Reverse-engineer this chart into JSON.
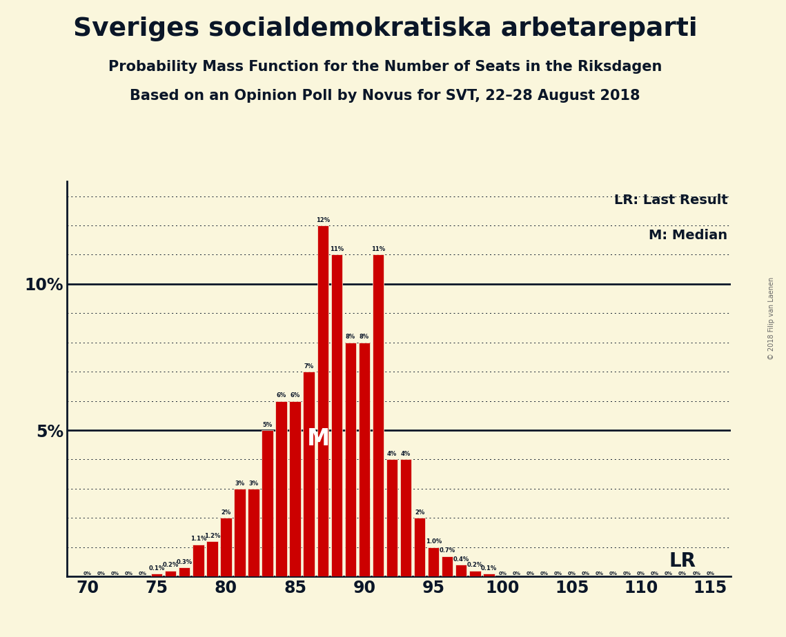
{
  "title": "Sveriges socialdemokratiska arbetareparti",
  "subtitle1": "Probability Mass Function for the Number of Seats in the Riksdagen",
  "subtitle2": "Based on an Opinion Poll by Novus for SVT, 22–28 August 2018",
  "copyright": "© 2018 Filip van Laenen",
  "lr_label": "LR: Last Result",
  "m_label": "M: Median",
  "lr_text": "LR",
  "m_text": "M",
  "lr_seat": 113,
  "median_seat": 87,
  "background_color": "#FAF6DC",
  "bar_color": "#CC0000",
  "bar_edge_color": "#FAF6DC",
  "text_color": "#0A1628",
  "ylim_max": 0.135,
  "seats": [
    70,
    71,
    72,
    73,
    74,
    75,
    76,
    77,
    78,
    79,
    80,
    81,
    82,
    83,
    84,
    85,
    86,
    87,
    88,
    89,
    90,
    91,
    92,
    93,
    94,
    95,
    96,
    97,
    98,
    99,
    100,
    101,
    102,
    103,
    104,
    105,
    106,
    107,
    108,
    109,
    110,
    111,
    112,
    113,
    114,
    115
  ],
  "probs": [
    0.0,
    0.0,
    0.0,
    0.0,
    0.0,
    0.001,
    0.002,
    0.003,
    0.011,
    0.012,
    0.02,
    0.03,
    0.03,
    0.05,
    0.06,
    0.06,
    0.07,
    0.12,
    0.11,
    0.08,
    0.08,
    0.11,
    0.04,
    0.04,
    0.02,
    0.01,
    0.007,
    0.004,
    0.002,
    0.001,
    0.0,
    0.0,
    0.0,
    0.0,
    0.0,
    0.0,
    0.0,
    0.0,
    0.0,
    0.0,
    0.0,
    0.0,
    0.0,
    0.0,
    0.0,
    0.0
  ],
  "bar_labels": [
    "0%",
    "0%",
    "0%",
    "0%",
    "0%",
    "0.1%",
    "0.2%",
    "0.3%",
    "1.1%",
    "1.2%",
    "2%",
    "3%",
    "3%",
    "5%",
    "6%",
    "6%",
    "7%",
    "12%",
    "11%",
    "8%",
    "8%",
    "11%",
    "4%",
    "4%",
    "2%",
    "1.0%",
    "0.7%",
    "0.4%",
    "0.2%",
    "0.1%",
    "0%",
    "0%",
    "0%",
    "0%",
    "0%",
    "0%",
    "0%",
    "0%",
    "0%",
    "0%",
    "0%",
    "0%",
    "0%",
    "0%",
    "0%",
    "0%"
  ]
}
